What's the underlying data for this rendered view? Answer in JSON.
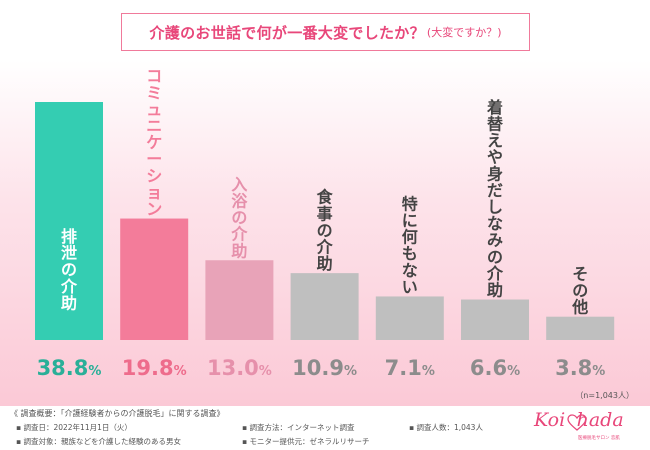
{
  "title": {
    "main": "介護のお世話で何が一番大変でしたか？",
    "sub": "(大変ですか？)"
  },
  "chart_data": {
    "type": "bar",
    "title": "介護のお世話で何が一番大変でしたか？(大変ですか？)",
    "categories": [
      "排泄の介助",
      "コミュニケーション",
      "入浴の介助",
      "食事の介助",
      "特に何もない",
      "着替えや身だしなみの介助",
      "その他"
    ],
    "values": [
      38.8,
      19.8,
      13.0,
      10.9,
      7.1,
      6.6,
      3.8
    ],
    "value_labels": [
      "38.8%",
      "19.8%",
      "13.0%",
      "10.9%",
      "7.1%",
      "6.6%",
      "3.8%"
    ],
    "colors": [
      "#34cdb2",
      "#f37c9a",
      "#e8a3b8",
      "#bfbfbf",
      "#bfbfbf",
      "#bfbfbf",
      "#bfbfbf"
    ],
    "label_colors": [
      "#2aaf98",
      "#ee6c8c",
      "#e690ab",
      "#8c8c8c",
      "#8c8c8c",
      "#8c8c8c",
      "#8c8c8c"
    ],
    "category_label_colors": [
      "#ffffff",
      "#f37c9a",
      "#e690ab",
      "#444444",
      "#444444",
      "#444444",
      "#444444"
    ],
    "ylim": [
      0,
      38.8
    ],
    "xlabel": "",
    "ylabel": "",
    "grid": false,
    "legend": "none",
    "n_note": "（n=1,043人）"
  },
  "footer": {
    "heading": "《 調査概要：「介護経験者からの介護脱毛」に関する調査》",
    "date": "▪ 調査日：2022年11月1日（火）",
    "method": "▪ 調査方法：インターネット調査",
    "count": "▪ 調査人数：1,043人",
    "target": "▪ 調査対象：親族などを介護した経験のある男女",
    "provider": "▪ モニター提供元：ゼネラルリサーチ"
  },
  "logo": {
    "text_left": "Koi",
    "text_right": "hada",
    "tagline": "医療脱毛サロン 恋肌"
  }
}
